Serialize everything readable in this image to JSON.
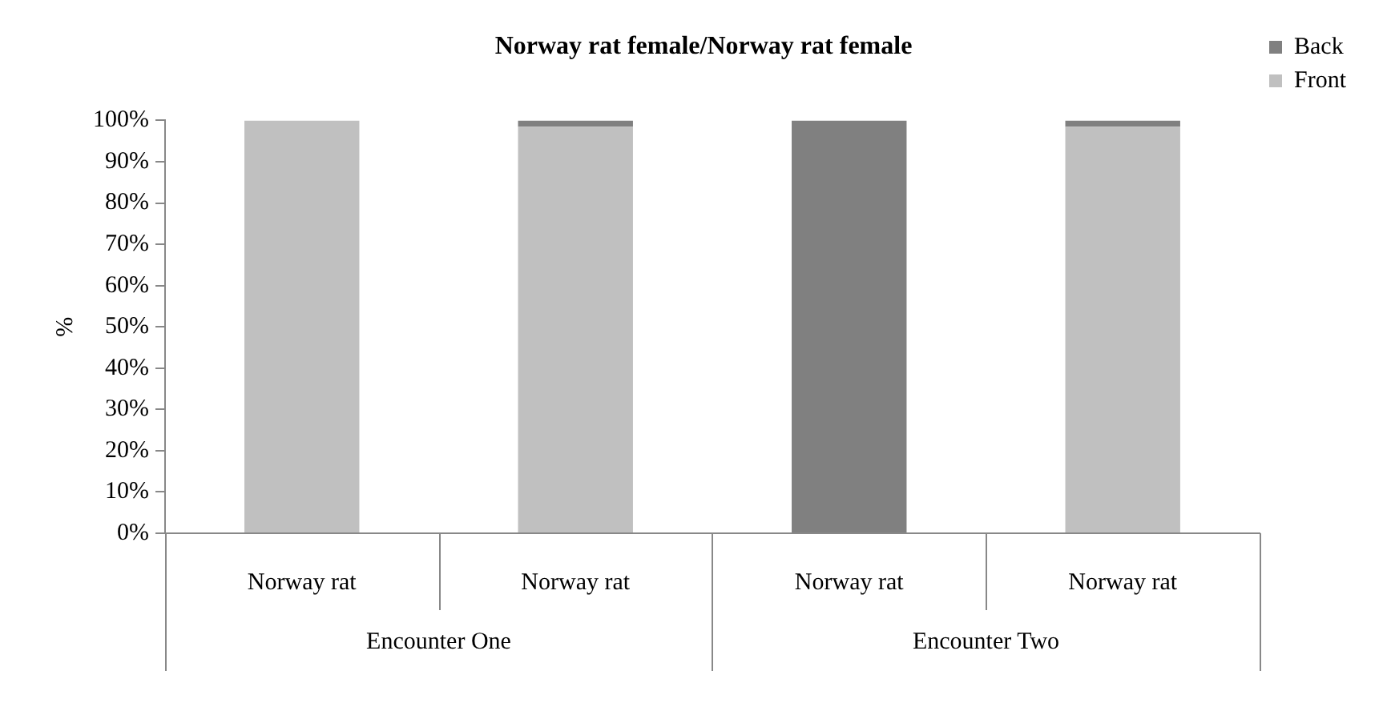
{
  "chart_data": {
    "type": "bar",
    "title": "Norway rat female/Norway rat female",
    "ylabel": "%",
    "stacked": true,
    "categories": [
      "Norway rat",
      "Norway rat",
      "Norway rat",
      "Norway rat"
    ],
    "series": [
      {
        "name": "Front",
        "color": "#c0c0c0",
        "values": [
          100,
          98.5,
          0,
          98.5
        ]
      },
      {
        "name": "Back",
        "color": "#808080",
        "values": [
          0,
          1.5,
          100,
          1.5
        ]
      }
    ],
    "annotations": [
      "Encounter One",
      "Encounter Two"
    ],
    "ylim": [
      0,
      100
    ],
    "yticks": [
      {
        "value": 0,
        "label": "0%"
      },
      {
        "value": 10,
        "label": "10%"
      },
      {
        "value": 20,
        "label": "20%"
      },
      {
        "value": 30,
        "label": "30%"
      },
      {
        "value": 40,
        "label": "40%"
      },
      {
        "value": 50,
        "label": "50%"
      },
      {
        "value": 60,
        "label": "60%"
      },
      {
        "value": 70,
        "label": "70%"
      },
      {
        "value": 80,
        "label": "80%"
      },
      {
        "value": 90,
        "label": "90%"
      },
      {
        "value": 100,
        "label": "100%"
      }
    ],
    "grid": false,
    "legend": "top right"
  }
}
